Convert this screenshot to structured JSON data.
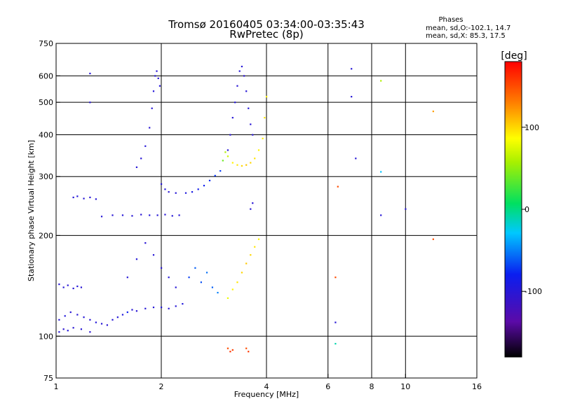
{
  "chart_data": {
    "type": "scatter",
    "title": "Tromsø 20160405 03:34:00-03:35:43",
    "subtitle": "RwPretec (8p)",
    "xlabel": "Frequency [MHz]",
    "ylabel": "Stationary phase Virtual Height [km]",
    "x_scale": "log",
    "y_scale": "log",
    "xlim": [
      1,
      16
    ],
    "ylim": [
      75,
      750
    ],
    "x_ticks": [
      1,
      2,
      4,
      6,
      8,
      10,
      16
    ],
    "x_tick_labels": [
      "1",
      "2",
      "4",
      "6",
      "8",
      "10",
      "16"
    ],
    "y_ticks": [
      75,
      100,
      200,
      300,
      400,
      500,
      600,
      750
    ],
    "y_tick_labels": [
      "75",
      "100",
      "200",
      "300",
      "400",
      "500",
      "600",
      "750"
    ],
    "x_grid": [
      2,
      4,
      6,
      8,
      10
    ],
    "y_grid": [
      100,
      200,
      300,
      400,
      500,
      600
    ],
    "stats": {
      "heading": "Phases",
      "line1": "mean, sd,O:-102.1, 14.7",
      "line2": "mean, sd,X:  85.3, 17.5"
    },
    "colorbar": {
      "label": "[deg]",
      "range": [
        -180,
        180
      ],
      "ticks": [
        100,
        0,
        -100
      ],
      "tick_labels": [
        "100",
        "0",
        "-100"
      ]
    },
    "points": [
      [
        1.02,
        103,
        -100
      ],
      [
        1.05,
        105,
        -105
      ],
      [
        1.08,
        104,
        -98
      ],
      [
        1.12,
        106,
        -102
      ],
      [
        1.18,
        105,
        -100
      ],
      [
        1.25,
        103,
        -104
      ],
      [
        1.02,
        112,
        -100
      ],
      [
        1.06,
        115,
        -96
      ],
      [
        1.1,
        118,
        -102
      ],
      [
        1.15,
        116,
        -100
      ],
      [
        1.2,
        114,
        -99
      ],
      [
        1.25,
        112,
        -101
      ],
      [
        1.3,
        110,
        -97
      ],
      [
        1.35,
        109,
        -100
      ],
      [
        1.4,
        108,
        -102
      ],
      [
        1.45,
        112,
        -100
      ],
      [
        1.5,
        114,
        -98
      ],
      [
        1.55,
        116,
        -95
      ],
      [
        1.6,
        118,
        -80
      ],
      [
        1.65,
        120,
        -100
      ],
      [
        1.7,
        119,
        -102
      ],
      [
        1.8,
        121,
        -99
      ],
      [
        1.9,
        122,
        -100
      ],
      [
        2.0,
        122,
        -97
      ],
      [
        2.1,
        121,
        -101
      ],
      [
        2.2,
        123,
        -100
      ],
      [
        2.3,
        125,
        -96
      ],
      [
        1.02,
        143,
        -100
      ],
      [
        1.05,
        140,
        -99
      ],
      [
        1.08,
        142,
        -101
      ],
      [
        1.12,
        139,
        -100
      ],
      [
        1.15,
        141,
        -98
      ],
      [
        1.18,
        140,
        -102
      ],
      [
        1.12,
        260,
        -100
      ],
      [
        1.15,
        262,
        -97
      ],
      [
        1.2,
        258,
        -100
      ],
      [
        1.25,
        260,
        -102
      ],
      [
        1.3,
        257,
        -99
      ],
      [
        1.35,
        228,
        -100
      ],
      [
        1.45,
        230,
        -101
      ],
      [
        1.55,
        230,
        -99
      ],
      [
        1.65,
        229,
        -100
      ],
      [
        1.75,
        231,
        -102
      ],
      [
        1.85,
        230,
        -98
      ],
      [
        1.95,
        230,
        -100
      ],
      [
        2.05,
        231,
        -101
      ],
      [
        2.15,
        229,
        -99
      ],
      [
        2.25,
        230,
        -100
      ],
      [
        1.7,
        320,
        -100
      ],
      [
        1.75,
        340,
        -101
      ],
      [
        1.8,
        370,
        -99
      ],
      [
        1.85,
        420,
        -102
      ],
      [
        1.88,
        480,
        -100
      ],
      [
        1.9,
        540,
        -98
      ],
      [
        1.92,
        600,
        -100
      ],
      [
        1.94,
        620,
        -101
      ],
      [
        1.96,
        590,
        -103
      ],
      [
        1.98,
        560,
        -100
      ],
      [
        2.0,
        285,
        -100
      ],
      [
        2.05,
        275,
        -98
      ],
      [
        2.1,
        270,
        -101
      ],
      [
        2.2,
        268,
        -100
      ],
      [
        2.35,
        268,
        -95
      ],
      [
        2.45,
        270,
        -90
      ],
      [
        2.55,
        275,
        -85
      ],
      [
        2.65,
        282,
        -80
      ],
      [
        2.75,
        292,
        -75
      ],
      [
        2.85,
        302,
        -72
      ],
      [
        2.95,
        312,
        -70
      ],
      [
        3.0,
        335,
        40
      ],
      [
        3.05,
        355,
        60
      ],
      [
        3.1,
        345,
        70
      ],
      [
        3.2,
        330,
        90
      ],
      [
        3.3,
        325,
        95
      ],
      [
        3.4,
        323,
        100
      ],
      [
        3.5,
        325,
        105
      ],
      [
        3.6,
        330,
        100
      ],
      [
        3.7,
        340,
        95
      ],
      [
        3.8,
        360,
        90
      ],
      [
        3.9,
        390,
        92
      ],
      [
        3.95,
        450,
        95
      ],
      [
        4.0,
        520,
        90
      ],
      [
        3.1,
        360,
        -100
      ],
      [
        3.15,
        400,
        -102
      ],
      [
        3.2,
        450,
        -100
      ],
      [
        3.25,
        500,
        -98
      ],
      [
        3.3,
        560,
        -101
      ],
      [
        3.35,
        620,
        -100
      ],
      [
        3.4,
        640,
        -99
      ],
      [
        3.45,
        600,
        -102
      ],
      [
        3.5,
        540,
        -100
      ],
      [
        3.55,
        480,
        -98
      ],
      [
        3.6,
        430,
        -101
      ],
      [
        3.65,
        400,
        -100
      ],
      [
        1.6,
        150,
        -100
      ],
      [
        1.7,
        170,
        -99
      ],
      [
        1.8,
        190,
        -101
      ],
      [
        1.9,
        175,
        -100
      ],
      [
        2.0,
        160,
        -102
      ],
      [
        2.1,
        150,
        -98
      ],
      [
        2.2,
        140,
        -100
      ],
      [
        2.4,
        150,
        -70
      ],
      [
        2.5,
        160,
        -60
      ],
      [
        2.6,
        145,
        -65
      ],
      [
        2.7,
        155,
        -55
      ],
      [
        2.8,
        140,
        -60
      ],
      [
        2.9,
        135,
        -50
      ],
      [
        3.1,
        130,
        80
      ],
      [
        3.2,
        138,
        90
      ],
      [
        3.3,
        145,
        95
      ],
      [
        3.4,
        155,
        100
      ],
      [
        3.5,
        165,
        105
      ],
      [
        3.6,
        175,
        100
      ],
      [
        3.7,
        185,
        95
      ],
      [
        3.8,
        195,
        90
      ],
      [
        3.1,
        92,
        150
      ],
      [
        3.15,
        90,
        160
      ],
      [
        3.2,
        91,
        155
      ],
      [
        3.5,
        92,
        150
      ],
      [
        3.55,
        90,
        158
      ],
      [
        3.6,
        240,
        -100
      ],
      [
        3.65,
        250,
        -101
      ],
      [
        1.25,
        610,
        -100
      ],
      [
        1.25,
        500,
        -101
      ],
      [
        6.3,
        150,
        150
      ],
      [
        6.3,
        110,
        -100
      ],
      [
        6.3,
        95,
        -10
      ],
      [
        6.4,
        280,
        150
      ],
      [
        7.0,
        630,
        -100
      ],
      [
        7.0,
        520,
        -100
      ],
      [
        7.2,
        340,
        -100
      ],
      [
        8.5,
        580,
        60
      ],
      [
        8.5,
        310,
        -30
      ],
      [
        8.5,
        230,
        -100
      ],
      [
        10.0,
        240,
        -100
      ],
      [
        12.0,
        470,
        120
      ],
      [
        12.0,
        195,
        150
      ]
    ]
  }
}
